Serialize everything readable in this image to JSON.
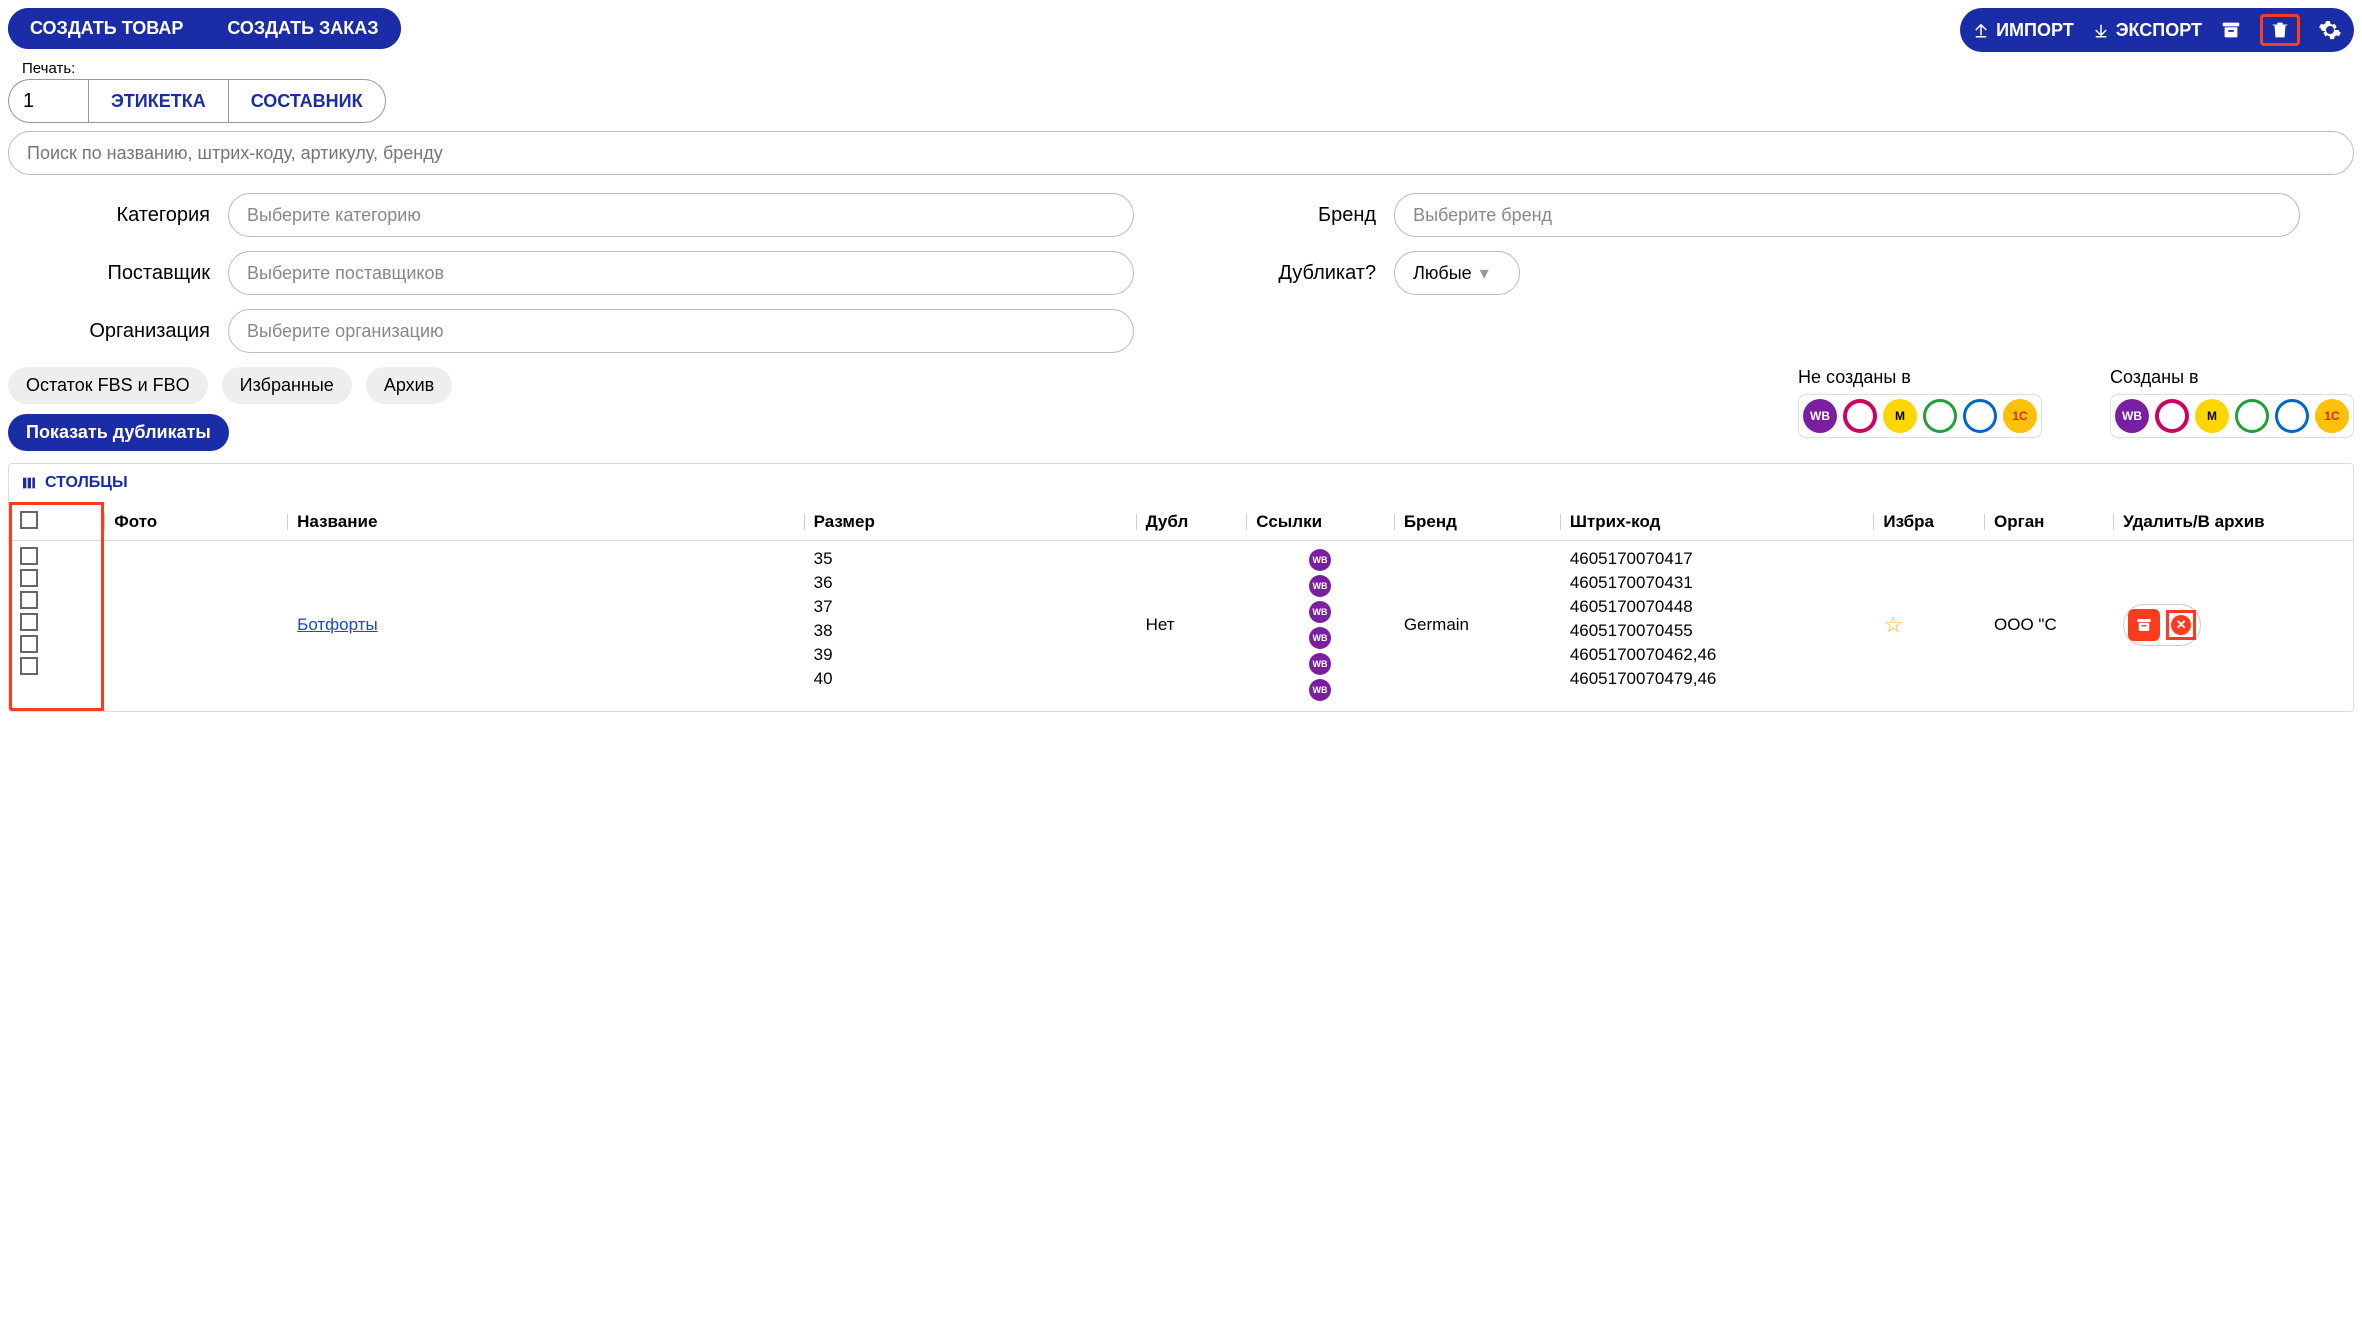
{
  "colors": {
    "primary": "#1a2da6",
    "danger": "#ff3b1f",
    "wb": "#7b1fa2"
  },
  "header": {
    "create_product": "СОЗДАТЬ ТОВАР",
    "create_order": "СОЗДАТЬ ЗАКАЗ",
    "import": "ИМПОРТ",
    "export": "ЭКСПОРТ"
  },
  "print": {
    "label": "Печать:",
    "qty": "1",
    "etiketka": "ЭТИКЕТКА",
    "sostavnik": "СОСТАВНИК"
  },
  "search": {
    "placeholder": "Поиск по названию, штрих-коду, артикулу, бренду"
  },
  "filters": {
    "category_label": "Категория",
    "category_placeholder": "Выберите категорию",
    "supplier_label": "Поставщик",
    "supplier_placeholder": "Выберите поставщиков",
    "org_label": "Организация",
    "org_placeholder": "Выберите организацию",
    "brand_label": "Бренд",
    "brand_placeholder": "Выберите бренд",
    "duplicate_label": "Дубликат?",
    "duplicate_value": "Любые"
  },
  "chips": {
    "stock": "Остаток FBS и FBO",
    "fav": "Избранные",
    "archive": "Архив",
    "show_dup": "Показать дубликаты"
  },
  "markets": {
    "not_created": "Не созданы в",
    "created": "Созданы в",
    "wb": "WB",
    "ym": "M",
    "one": "1C"
  },
  "table": {
    "columns_btn": "СТОЛБЦЫ",
    "headers": {
      "photo": "Фото",
      "name": "Название",
      "size": "Размер",
      "dup": "Дубл",
      "links": "Ссылки",
      "brand": "Бренд",
      "barcode": "Штрих-код",
      "fav": "Избра",
      "org": "Орган",
      "del": "Удалить/В архив"
    },
    "row": {
      "name": "Ботфорты",
      "dup": "Нет",
      "brand": "Germain",
      "org": "ООО \"С",
      "sizes": [
        "35",
        "36",
        "37",
        "38",
        "39",
        "40"
      ],
      "barcodes": [
        "4605170070417",
        "4605170070431",
        "4605170070448",
        "4605170070455",
        "4605170070462,46",
        "4605170070479,46"
      ],
      "link_badge": "WB"
    }
  }
}
